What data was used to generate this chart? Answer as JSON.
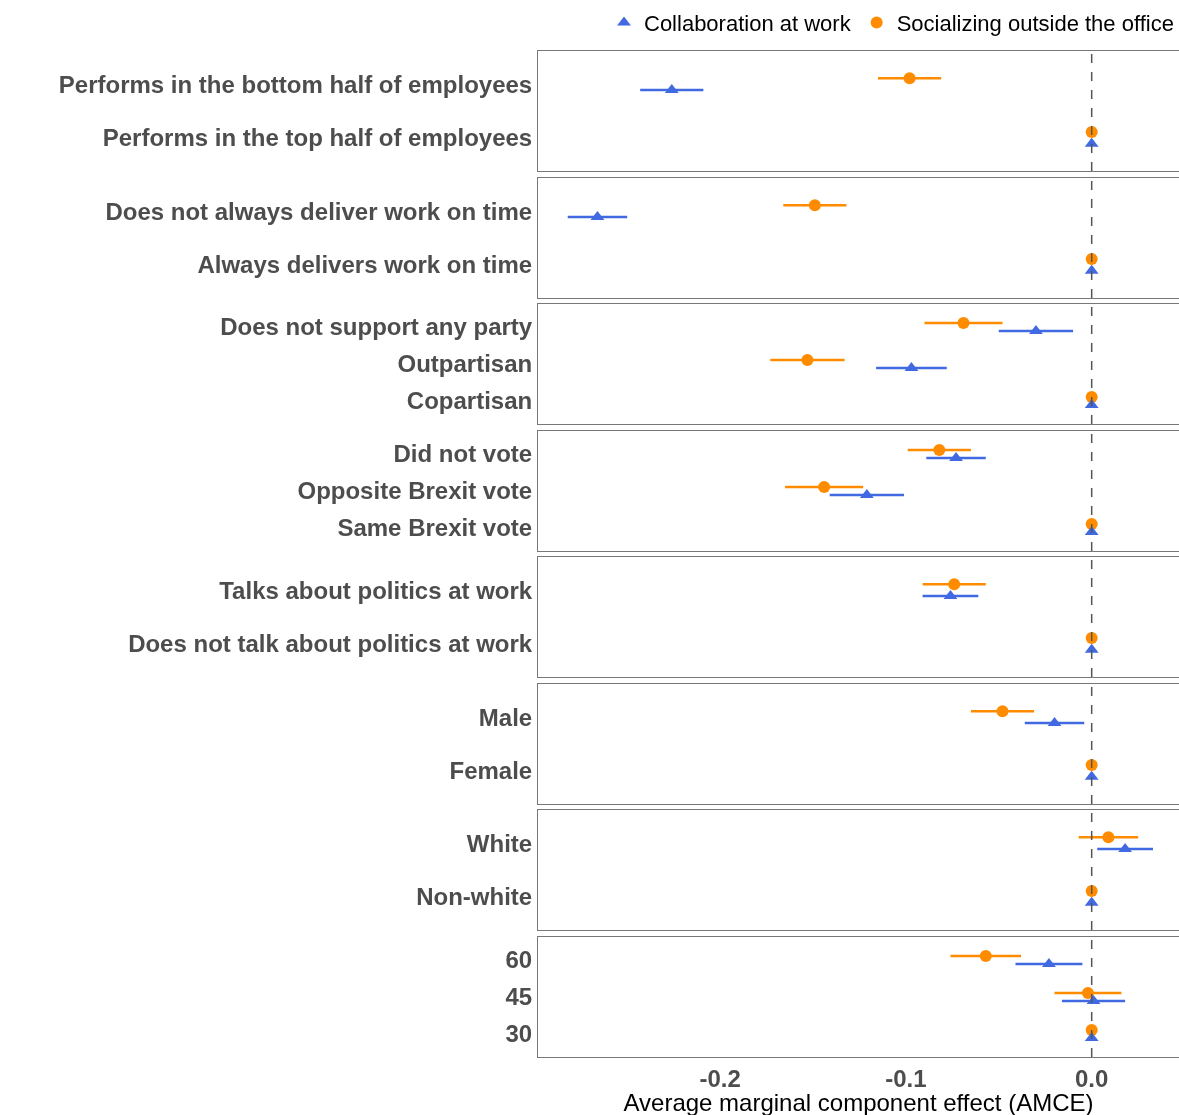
{
  "chart_data": [
    {
      "type": "scatter",
      "orientation": "horizontal",
      "categories": [
        "Performs in the bottom half of employees",
        "Performs in the top half of employees"
      ],
      "legend": "top right",
      "tick_labels": "y",
      "xlim": [
        -0.298,
        0.047
      ],
      "ref_lines": [
        {
          "axis": "x",
          "value": 0,
          "line_style": "dashed",
          "color": "#555555"
        }
      ],
      "series": [
        {
          "name": "Collaboration at work",
          "color": "#4169e1",
          "marker": "triangle",
          "values": [
            -0.226,
            0
          ],
          "errors": [
            0.017,
            null
          ]
        },
        {
          "name": "Socializing outside the office",
          "color": "#ff8c00",
          "marker": "circle",
          "values": [
            -0.098,
            0
          ],
          "errors": [
            0.017,
            null
          ]
        }
      ]
    },
    {
      "type": "scatter",
      "orientation": "horizontal",
      "categories": [
        "Does not always deliver work on time",
        "Always delivers work on time"
      ],
      "tick_labels": "y",
      "xlim": [
        -0.298,
        0.047
      ],
      "ref_lines": [
        {
          "axis": "x",
          "value": 0,
          "line_style": "dashed",
          "color": "#555555"
        }
      ],
      "series": [
        {
          "color": "#4169e1",
          "marker": "triangle",
          "values": [
            -0.266,
            0
          ],
          "errors": [
            0.016,
            null
          ]
        },
        {
          "color": "#ff8c00",
          "marker": "circle",
          "values": [
            -0.149,
            0
          ],
          "errors": [
            0.017,
            null
          ]
        }
      ]
    },
    {
      "type": "scatter",
      "orientation": "horizontal",
      "categories": [
        "Does not support any party",
        "Outpartisan",
        "Copartisan"
      ],
      "tick_labels": "y",
      "xlim": [
        -0.298,
        0.047
      ],
      "ref_lines": [
        {
          "axis": "x",
          "value": 0,
          "line_style": "dashed",
          "color": "#555555"
        }
      ],
      "series": [
        {
          "color": "#4169e1",
          "marker": "triangle",
          "values": [
            -0.03,
            -0.097,
            0
          ],
          "errors": [
            0.02,
            0.019,
            null
          ]
        },
        {
          "color": "#ff8c00",
          "marker": "circle",
          "values": [
            -0.069,
            -0.153,
            0
          ],
          "errors": [
            0.021,
            0.02,
            null
          ]
        }
      ]
    },
    {
      "type": "scatter",
      "orientation": "horizontal",
      "categories": [
        "Did not vote",
        "Opposite Brexit vote",
        "Same Brexit vote"
      ],
      "tick_labels": "y",
      "xlim": [
        -0.298,
        0.047
      ],
      "ref_lines": [
        {
          "axis": "x",
          "value": 0,
          "line_style": "dashed",
          "color": "#555555"
        }
      ],
      "series": [
        {
          "color": "#4169e1",
          "marker": "triangle",
          "values": [
            -0.073,
            -0.121,
            0
          ],
          "errors": [
            0.016,
            0.02,
            null
          ]
        },
        {
          "color": "#ff8c00",
          "marker": "circle",
          "values": [
            -0.082,
            -0.144,
            0
          ],
          "errors": [
            0.017,
            0.021,
            null
          ]
        }
      ]
    },
    {
      "type": "scatter",
      "orientation": "horizontal",
      "categories": [
        "Talks about politics at work",
        "Does not talk about politics at work"
      ],
      "tick_labels": "y",
      "xlim": [
        -0.298,
        0.047
      ],
      "ref_lines": [
        {
          "axis": "x",
          "value": 0,
          "line_style": "dashed",
          "color": "#555555"
        }
      ],
      "series": [
        {
          "color": "#4169e1",
          "marker": "triangle",
          "values": [
            -0.076,
            0
          ],
          "errors": [
            0.015,
            null
          ]
        },
        {
          "color": "#ff8c00",
          "marker": "circle",
          "values": [
            -0.074,
            0
          ],
          "errors": [
            0.017,
            null
          ]
        }
      ]
    },
    {
      "type": "scatter",
      "orientation": "horizontal",
      "categories": [
        "Male",
        "Female"
      ],
      "tick_labels": "y",
      "xlim": [
        -0.298,
        0.047
      ],
      "ref_lines": [
        {
          "axis": "x",
          "value": 0,
          "line_style": "dashed",
          "color": "#555555"
        }
      ],
      "series": [
        {
          "color": "#4169e1",
          "marker": "triangle",
          "values": [
            -0.02,
            0
          ],
          "errors": [
            0.016,
            null
          ]
        },
        {
          "color": "#ff8c00",
          "marker": "circle",
          "values": [
            -0.048,
            0
          ],
          "errors": [
            0.017,
            null
          ]
        }
      ]
    },
    {
      "type": "scatter",
      "orientation": "horizontal",
      "categories": [
        "White",
        "Non-white"
      ],
      "tick_labels": "y",
      "xlim": [
        -0.298,
        0.047
      ],
      "ref_lines": [
        {
          "axis": "x",
          "value": 0,
          "line_style": "dashed",
          "color": "#555555"
        }
      ],
      "series": [
        {
          "color": "#4169e1",
          "marker": "triangle",
          "values": [
            0.018,
            0
          ],
          "errors": [
            0.015,
            null
          ]
        },
        {
          "color": "#ff8c00",
          "marker": "circle",
          "values": [
            0.009,
            0
          ],
          "errors": [
            0.016,
            null
          ]
        }
      ]
    },
    {
      "type": "scatter",
      "orientation": "horizontal",
      "categories": [
        "60",
        "45",
        "30"
      ],
      "xlabel": "Average marginal component effect (AMCE)",
      "xlim": [
        -0.298,
        0.047
      ],
      "xticks": [
        {
          "value": -0.2,
          "label": "-0.2"
        },
        {
          "value": -0.1,
          "label": "-0.1"
        },
        {
          "value": 0,
          "label": "0.0"
        }
      ],
      "ref_lines": [
        {
          "axis": "x",
          "value": 0,
          "line_style": "dashed",
          "color": "#555555"
        }
      ],
      "series": [
        {
          "color": "#4169e1",
          "marker": "triangle",
          "values": [
            -0.023,
            0.001,
            0
          ],
          "errors": [
            0.018,
            0.017,
            null
          ]
        },
        {
          "color": "#ff8c00",
          "marker": "circle",
          "values": [
            -0.057,
            -0.002,
            0
          ],
          "errors": [
            0.019,
            0.018,
            null
          ]
        }
      ]
    }
  ]
}
